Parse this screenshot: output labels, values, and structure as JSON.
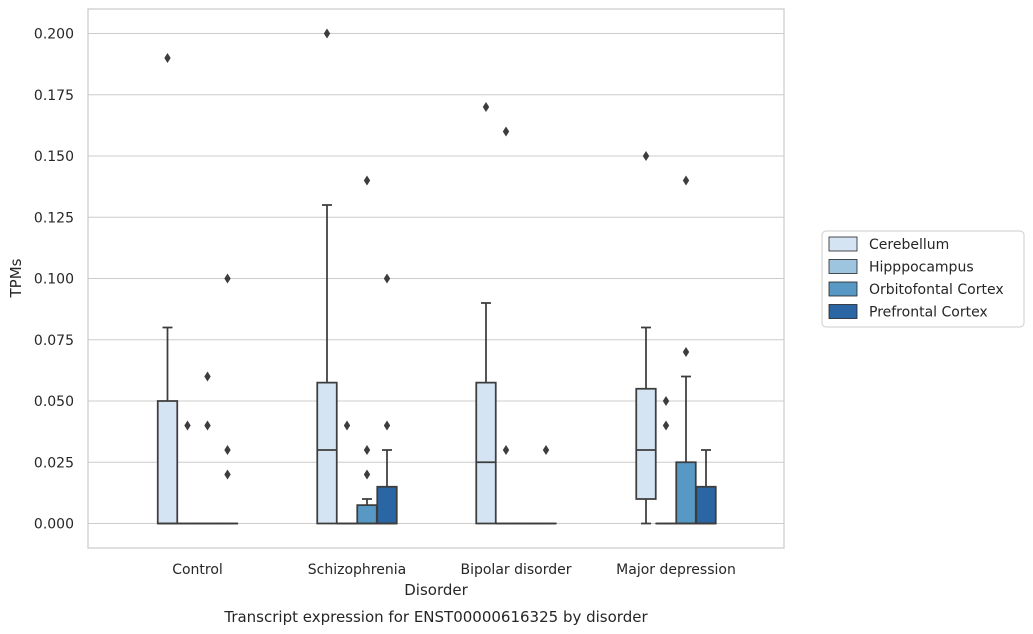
{
  "chart_data": {
    "type": "boxplot",
    "title": "",
    "caption": "Transcript expression for ENST00000616325 by disorder",
    "xlabel": "Disorder",
    "ylabel": "TPMs",
    "ylim": [
      -0.01,
      0.21
    ],
    "yticks": [
      0.0,
      0.025,
      0.05,
      0.075,
      0.1,
      0.125,
      0.15,
      0.175,
      0.2
    ],
    "ytick_labels": [
      "0.000",
      "0.025",
      "0.050",
      "0.075",
      "0.100",
      "0.125",
      "0.150",
      "0.175",
      "0.200"
    ],
    "grid": "horizontal",
    "legend_position": "right",
    "categories": [
      "Control",
      "Schizophrenia",
      "Bipolar disorder",
      "Major depression"
    ],
    "series": [
      {
        "name": "Cerebellum",
        "color": "#d4e4f3",
        "boxes": [
          {
            "whislo": 0.0,
            "q1": 0.0,
            "med": 0.0,
            "q3": 0.05,
            "whishi": 0.08,
            "fliers": [
              0.19
            ]
          },
          {
            "whislo": 0.0,
            "q1": 0.0,
            "med": 0.03,
            "q3": 0.0575,
            "whishi": 0.13,
            "fliers": [
              0.2
            ]
          },
          {
            "whislo": 0.0,
            "q1": 0.0,
            "med": 0.025,
            "q3": 0.0575,
            "whishi": 0.09,
            "fliers": [
              0.17
            ]
          },
          {
            "whislo": 0.0,
            "q1": 0.01,
            "med": 0.03,
            "q3": 0.055,
            "whishi": 0.08,
            "fliers": [
              0.15
            ]
          }
        ]
      },
      {
        "name": "Hipppocampus",
        "color": "#9dc5df",
        "boxes": [
          {
            "whislo": 0.0,
            "q1": 0.0,
            "med": 0.0,
            "q3": 0.0,
            "whishi": 0.0,
            "fliers": [
              0.04
            ]
          },
          {
            "whislo": 0.0,
            "q1": 0.0,
            "med": 0.0,
            "q3": 0.0,
            "whishi": 0.0,
            "fliers": [
              0.04
            ]
          },
          {
            "whislo": 0.0,
            "q1": 0.0,
            "med": 0.0,
            "q3": 0.0,
            "whishi": 0.0,
            "fliers": [
              0.03,
              0.16
            ]
          },
          {
            "whislo": 0.0,
            "q1": 0.0,
            "med": 0.0,
            "q3": 0.0,
            "whishi": 0.0,
            "fliers": [
              0.04,
              0.05
            ]
          }
        ]
      },
      {
        "name": "Orbitofontal Cortex",
        "color": "#5898c4",
        "boxes": [
          {
            "whislo": 0.0,
            "q1": 0.0,
            "med": 0.0,
            "q3": 0.0,
            "whishi": 0.0,
            "fliers": [
              0.04,
              0.06
            ]
          },
          {
            "whislo": 0.0,
            "q1": 0.0,
            "med": 0.0,
            "q3": 0.0075,
            "whishi": 0.01,
            "fliers": [
              0.02,
              0.03,
              0.14
            ]
          },
          {
            "whislo": 0.0,
            "q1": 0.0,
            "med": 0.0,
            "q3": 0.0,
            "whishi": 0.0,
            "fliers": []
          },
          {
            "whislo": 0.0,
            "q1": 0.0,
            "med": 0.0,
            "q3": 0.025,
            "whishi": 0.06,
            "fliers": [
              0.07,
              0.14
            ]
          }
        ]
      },
      {
        "name": "Prefrontal Cortex",
        "color": "#2966a3",
        "boxes": [
          {
            "whislo": 0.0,
            "q1": 0.0,
            "med": 0.0,
            "q3": 0.0,
            "whishi": 0.0,
            "fliers": [
              0.02,
              0.03,
              0.1
            ]
          },
          {
            "whislo": 0.0,
            "q1": 0.0,
            "med": 0.0,
            "q3": 0.015,
            "whishi": 0.03,
            "fliers": [
              0.04,
              0.1
            ]
          },
          {
            "whislo": 0.0,
            "q1": 0.0,
            "med": 0.0,
            "q3": 0.0,
            "whishi": 0.0,
            "fliers": [
              0.03
            ]
          },
          {
            "whislo": 0.0,
            "q1": 0.0,
            "med": 0.0,
            "q3": 0.015,
            "whishi": 0.03,
            "fliers": []
          }
        ]
      }
    ]
  }
}
